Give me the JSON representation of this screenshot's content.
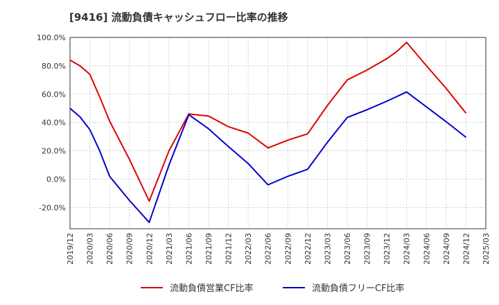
{
  "chart_data": {
    "type": "line",
    "title": "[9416]  流動負債キャッシュフロー比率の推移",
    "xlabel": "",
    "ylabel": "",
    "ylim": [
      -35,
      100
    ],
    "y_ticks": [
      100,
      80,
      60,
      40,
      20,
      0,
      -20
    ],
    "y_tick_labels": [
      "100.0%",
      "80.0%",
      "60.0%",
      "40.0%",
      "20.0%",
      "0.0%",
      "-20.0%"
    ],
    "x_tick_labels": [
      "2019/12",
      "2020/03",
      "2020/06",
      "2020/09",
      "2020/12",
      "2021/03",
      "2021/06",
      "2021/09",
      "2021/12",
      "2022/03",
      "2022/06",
      "2022/09",
      "2022/12",
      "2023/03",
      "2023/06",
      "2023/09",
      "2023/12",
      "2024/03",
      "2024/06",
      "2024/09",
      "2024/12",
      "2025/03"
    ],
    "grid": true,
    "legend_position": "bottom",
    "series": [
      {
        "name": "流動負債営業CF比率",
        "color": "#dd0000",
        "points": [
          [
            0,
            84.0
          ],
          [
            0.5,
            80.0
          ],
          [
            1,
            74.0
          ],
          [
            1.5,
            58.0
          ],
          [
            2,
            41.0
          ],
          [
            3,
            14.0
          ],
          [
            4,
            -15.5
          ],
          [
            5,
            20.0
          ],
          [
            6,
            46.0
          ],
          [
            7,
            44.5
          ],
          [
            8,
            37.0
          ],
          [
            9,
            32.5
          ],
          [
            10,
            22.0
          ],
          [
            11,
            27.5
          ],
          [
            12,
            32.0
          ],
          [
            13,
            52.0
          ],
          [
            14,
            70.0
          ],
          [
            15,
            77.0
          ],
          [
            16,
            85.0
          ],
          [
            16.5,
            90.0
          ],
          [
            17,
            96.5
          ],
          [
            18,
            80.0
          ],
          [
            19,
            64.0
          ],
          [
            20,
            46.5
          ]
        ]
      },
      {
        "name": "流動負債フリーCF比率",
        "color": "#0000cc",
        "points": [
          [
            0,
            50.0
          ],
          [
            0.5,
            44.0
          ],
          [
            1,
            35.0
          ],
          [
            1.5,
            20.0
          ],
          [
            2,
            2.0
          ],
          [
            3,
            -15.0
          ],
          [
            4,
            -30.5
          ],
          [
            5,
            10.0
          ],
          [
            6,
            45.5
          ],
          [
            7,
            35.5
          ],
          [
            8,
            23.0
          ],
          [
            9,
            11.0
          ],
          [
            10,
            -4.0
          ],
          [
            11,
            2.0
          ],
          [
            12,
            7.0
          ],
          [
            13,
            26.0
          ],
          [
            14,
            43.5
          ],
          [
            15,
            49.0
          ],
          [
            16,
            55.0
          ],
          [
            17,
            61.5
          ],
          [
            18,
            51.0
          ],
          [
            19,
            40.5
          ],
          [
            20,
            29.5
          ]
        ]
      }
    ]
  }
}
